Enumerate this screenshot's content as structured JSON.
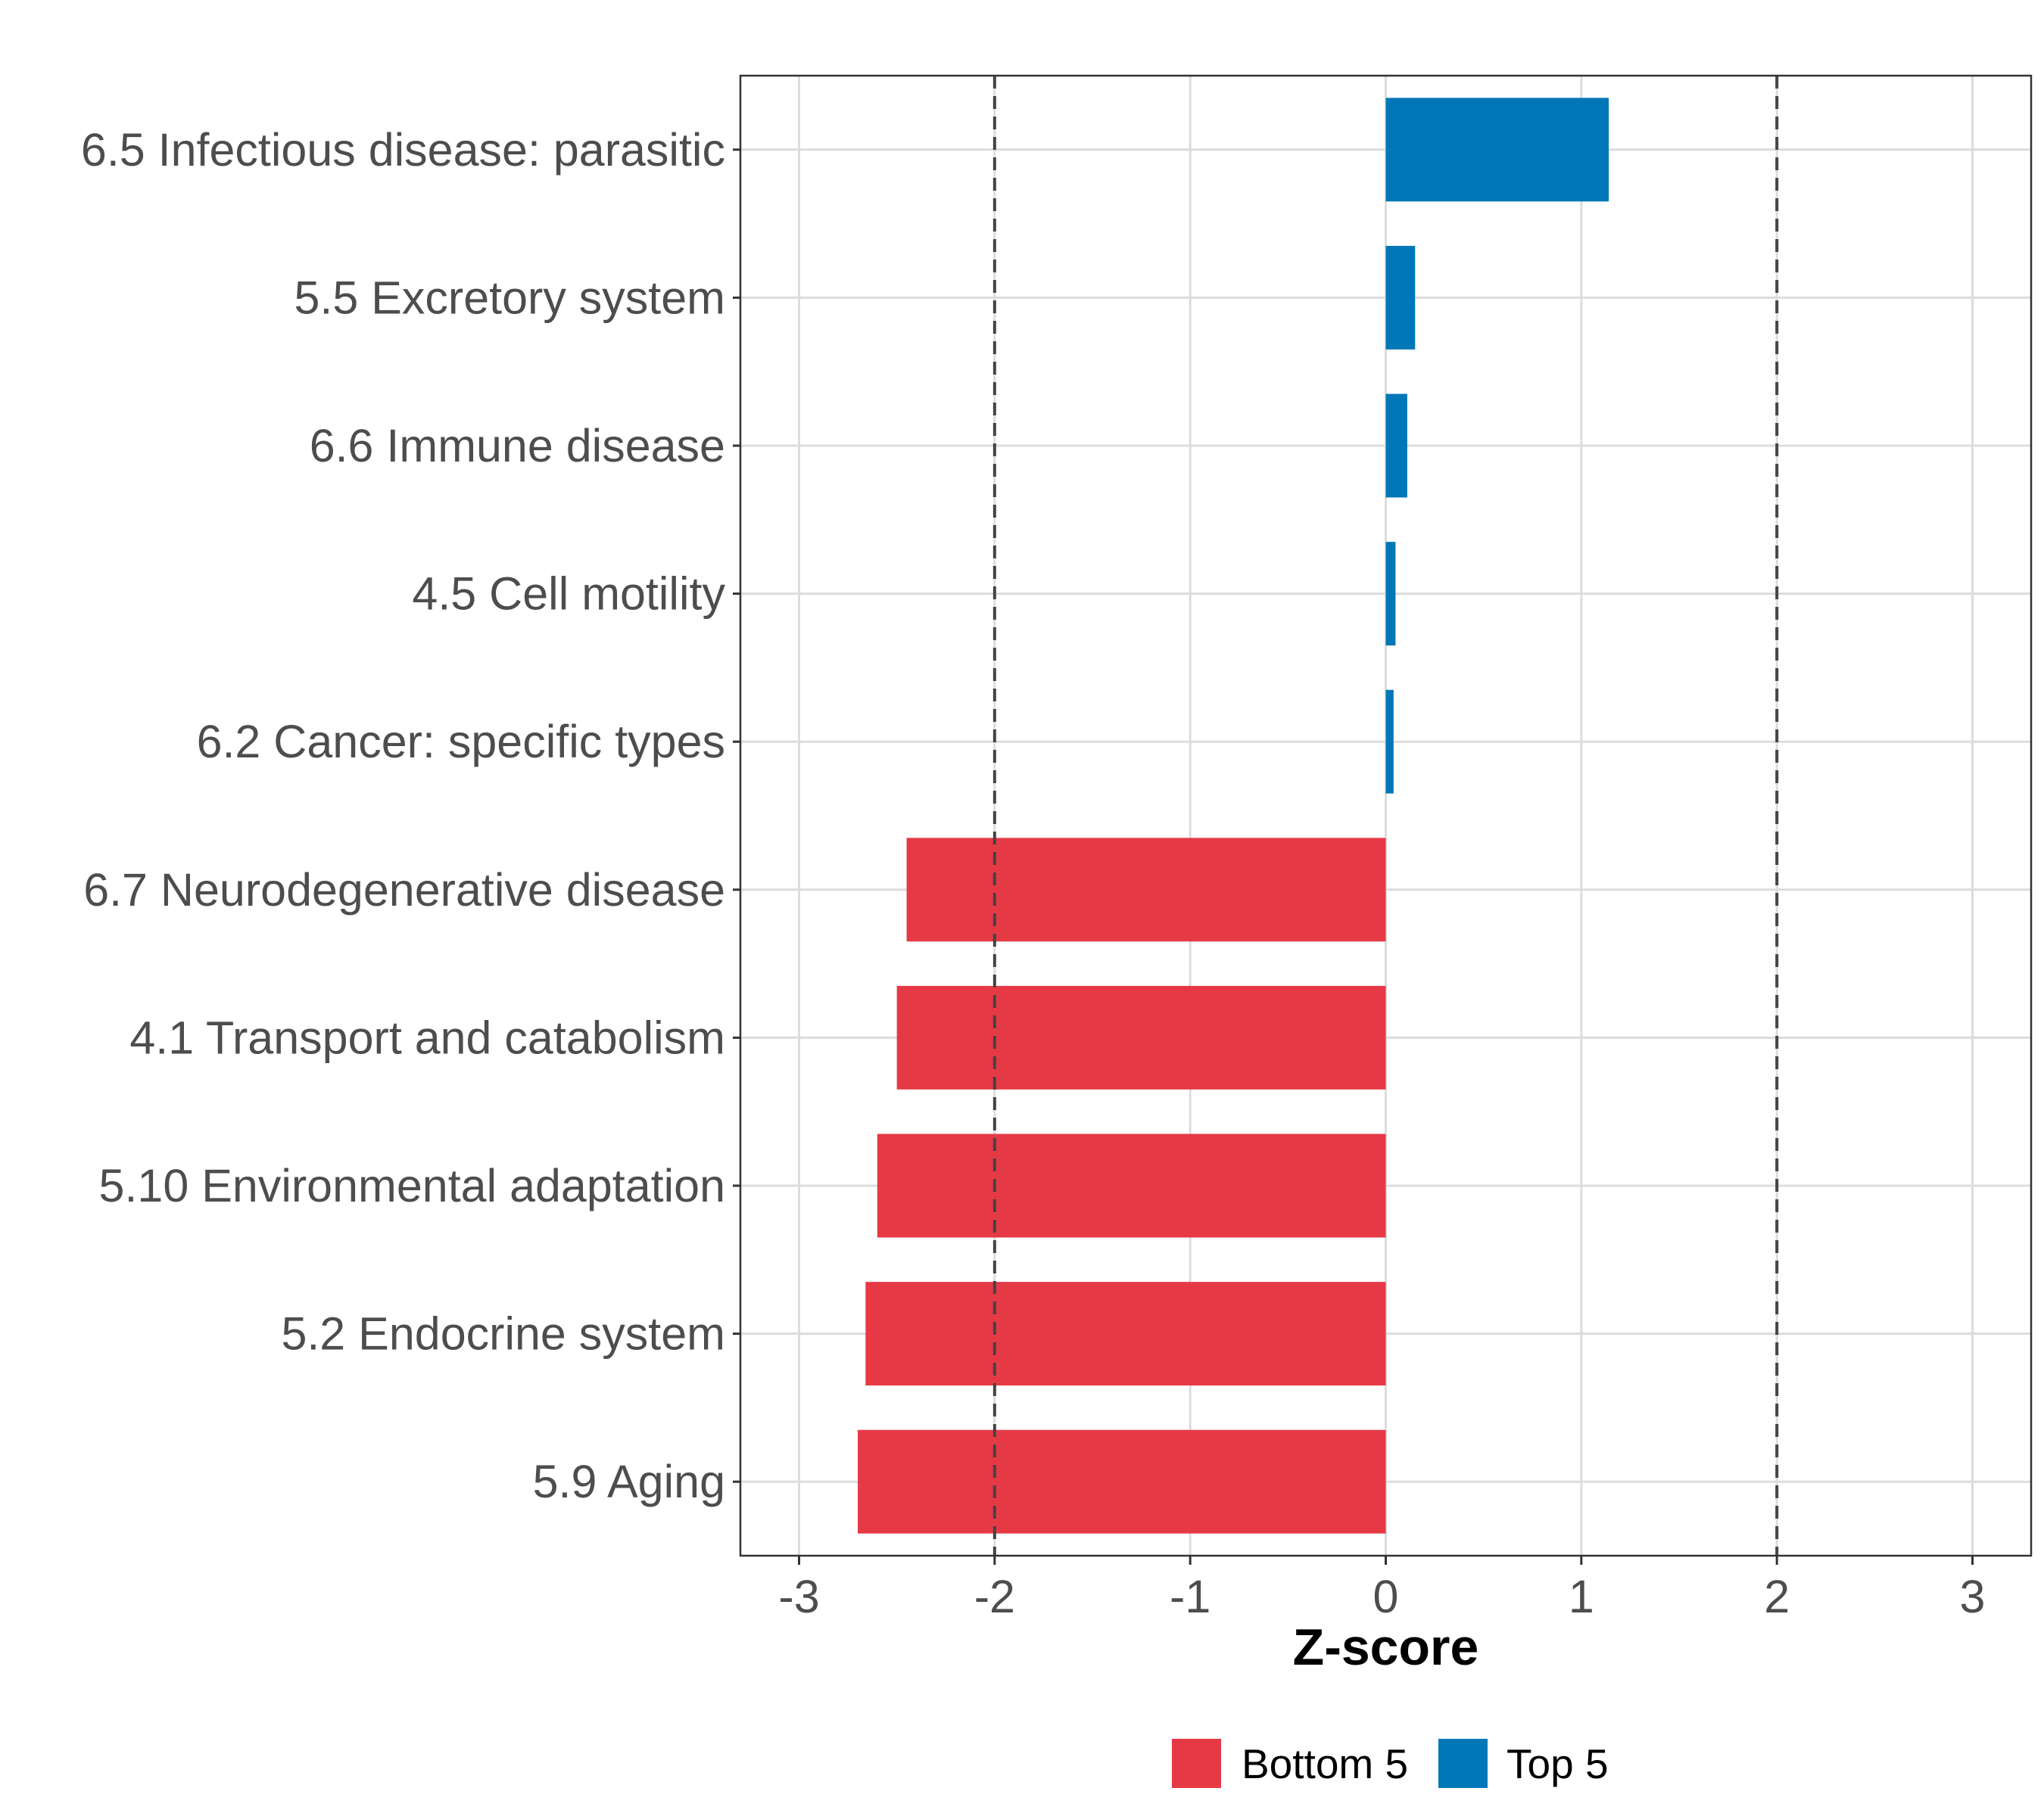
{
  "chart_data": {
    "type": "bar",
    "orientation": "horizontal",
    "categories": [
      "6.5 Infectious disease: parasitic",
      "5.5 Excretory system",
      "6.6 Immune disease",
      "4.5 Cell motility",
      "6.2 Cancer: specific types",
      "6.7 Neurodegenerative disease",
      "4.1 Transport and catabolism",
      "5.10 Environmental adaptation",
      "5.2 Endocrine system",
      "5.9 Aging"
    ],
    "values": [
      1.14,
      0.15,
      0.11,
      0.05,
      0.04,
      -2.45,
      -2.5,
      -2.6,
      -2.66,
      -2.7
    ],
    "groups": [
      "Top 5",
      "Top 5",
      "Top 5",
      "Top 5",
      "Top 5",
      "Bottom 5",
      "Bottom 5",
      "Bottom 5",
      "Bottom 5",
      "Bottom 5"
    ],
    "xlabel": "Z-score",
    "ylabel": "",
    "xlim": [
      -3.3,
      3.3
    ],
    "xticks": [
      -3,
      -2,
      -1,
      0,
      1,
      2,
      3
    ],
    "tick_labels": [
      "-3",
      "-2",
      "-1",
      "0",
      "1",
      "2",
      "3"
    ],
    "reference_lines": [
      -2,
      2
    ],
    "grid": true,
    "legend": {
      "position": "bottom",
      "entries": [
        {
          "label": "Bottom 5",
          "color": "#e63946"
        },
        {
          "label": "Top 5",
          "color": "#0077b6"
        }
      ]
    },
    "colors": {
      "Bottom 5": "#e63946",
      "Top 5": "#0077b6"
    }
  }
}
